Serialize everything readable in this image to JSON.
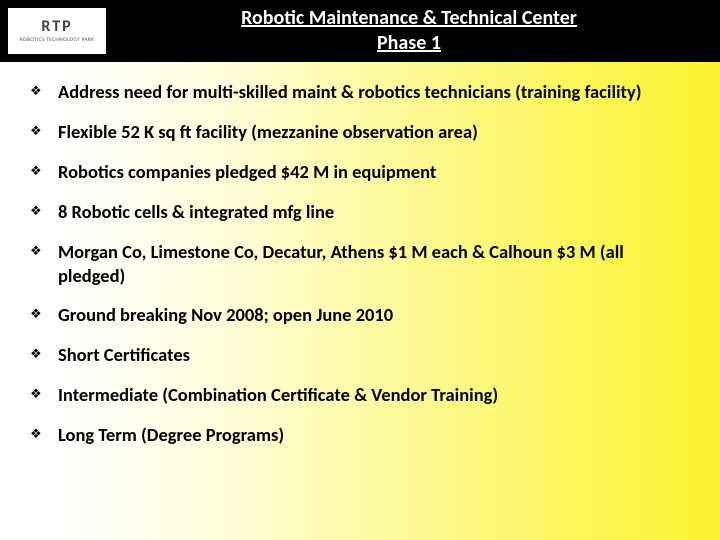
{
  "header": {
    "logo_main": "RTP",
    "logo_sub": "ROBOTICS TECHNOLOGY PARK",
    "title_line1": "Robotic Maintenance & Technical Center",
    "title_line2": "Phase 1"
  },
  "bullets": {
    "b0": "Address need for multi-skilled maint & robotics technicians (training facility)",
    "b1": "Flexible 52 K sq ft facility (mezzanine observation area)",
    "b2": "Robotics companies pledged $42 M in equipment",
    "b3": "8 Robotic cells & integrated mfg line",
    "b4": "Morgan Co, Limestone Co, Decatur, Athens $1 M each  & Calhoun $3 M (all pledged)",
    "b5": "Ground breaking Nov 2008; open June 2010",
    "b6": "Short Certificates",
    "b7": "Intermediate (Combination Certificate & Vendor Training)",
    "b8": "Long Term (Degree Programs)"
  },
  "style": {
    "marker": "❖",
    "title_color": "#ffffff",
    "header_bg": "#000000",
    "text_color": "#000000",
    "gradient_from": "#ffffff",
    "gradient_to": "#fcf22e"
  }
}
